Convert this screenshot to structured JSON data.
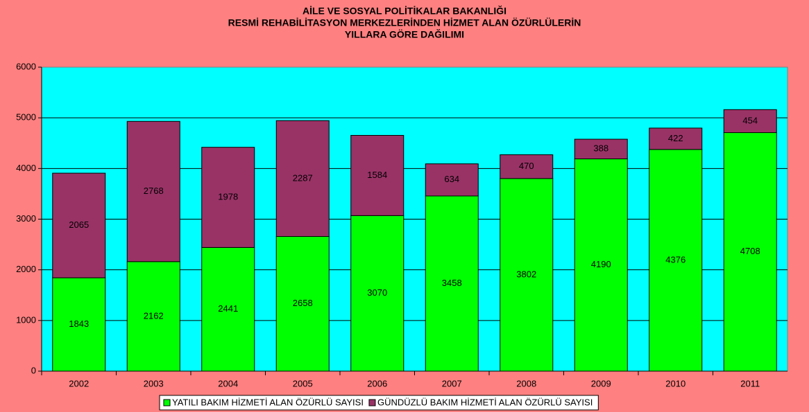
{
  "chart_data": {
    "type": "bar",
    "stacked": true,
    "title": [
      "AİLE VE SOSYAL POLİTİKALAR BAKANLIĞI",
      "RESMİ REHABİLİTASYON MERKEZLERİNDEN HİZMET ALAN ÖZÜRLÜLERİN",
      "YILLARA GÖRE DAĞILIMI"
    ],
    "categories": [
      "2002",
      "2003",
      "2004",
      "2005",
      "2006",
      "2007",
      "2008",
      "2009",
      "2010",
      "2011"
    ],
    "series": [
      {
        "name": "YATILI BAKIM HİZMETİ ALAN ÖZÜRLÜ SAYISI",
        "color": "#00ff00",
        "values": [
          1843,
          2162,
          2441,
          2658,
          3070,
          3458,
          3802,
          4190,
          4376,
          4708
        ]
      },
      {
        "name": "GÜNDÜZLÜ BAKIM HİZMETİ  ALAN ÖZÜRLÜ SAYISI",
        "color": "#993366",
        "values": [
          2065,
          2768,
          1978,
          2287,
          1584,
          634,
          470,
          388,
          422,
          454
        ]
      }
    ],
    "ylim": [
      0,
      6000
    ],
    "yticks": [
      0,
      1000,
      2000,
      3000,
      4000,
      5000,
      6000
    ],
    "grid": true,
    "legend": "bottom",
    "plot_color": "#00ffff",
    "background": "#ff8080"
  }
}
